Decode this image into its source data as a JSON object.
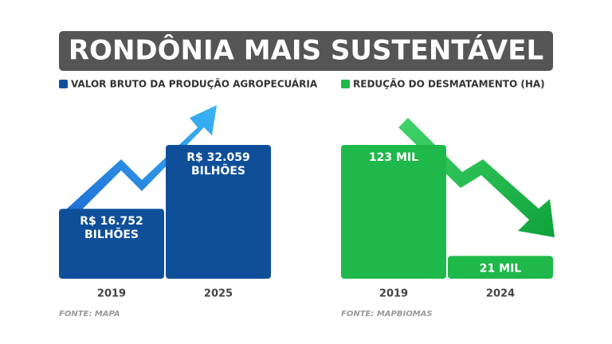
{
  "title": "RONDÔNIA MAIS SUSTENTÁVEL",
  "chart_data": [
    {
      "type": "bar",
      "categories": [
        "2019",
        "2025"
      ],
      "series": [
        {
          "name": "VALOR BRUTO DA PRODUÇÃO AGROPECUÁRIA",
          "color": "#0f4f9a",
          "values": [
            16.752,
            32.059
          ],
          "value_labels": [
            "R$ 16.752 BILHÕES",
            "R$ 32.059 BILHÕES"
          ]
        }
      ],
      "source": "FONTE: MAPA"
    },
    {
      "type": "bar",
      "categories": [
        "2019",
        "2024"
      ],
      "series": [
        {
          "name": "REDUÇÃO DO DESMATAMENTO (HA)",
          "color": "#1fb84a",
          "values": [
            123000,
            21000
          ],
          "value_labels": [
            "123 MIL",
            "21 MIL"
          ]
        }
      ],
      "source": "FONTE: MAPBIOMAS"
    }
  ]
}
